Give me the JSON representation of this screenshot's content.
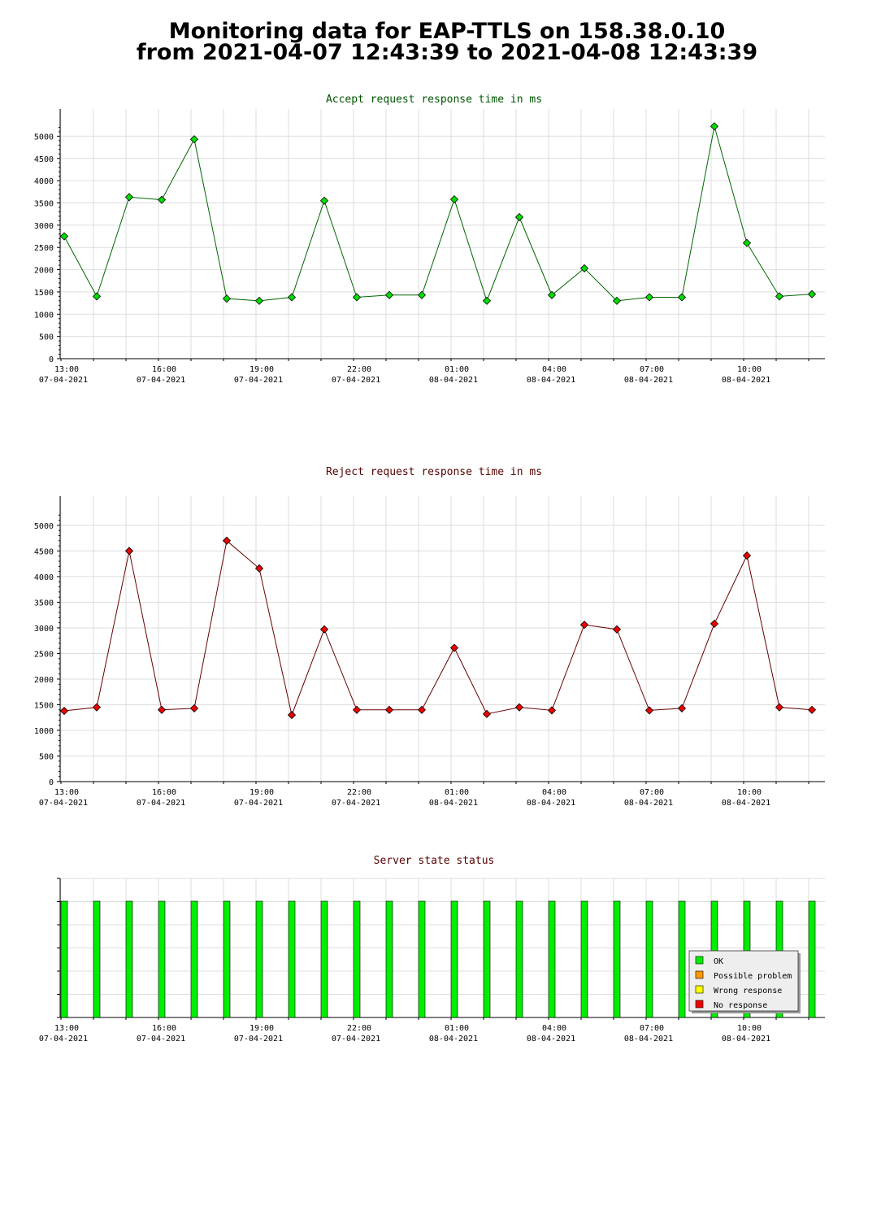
{
  "header": {
    "title_line1": "Monitoring data for EAP-TTLS on 158.38.0.10",
    "title_line2": "from 2021-04-07 12:43:39 to 2021-04-08 12:43:39"
  },
  "x_axis": {
    "ticks": [
      {
        "time": "13:00",
        "date": "07-04-2021"
      },
      {
        "time": "16:00",
        "date": "07-04-2021"
      },
      {
        "time": "19:00",
        "date": "07-04-2021"
      },
      {
        "time": "22:00",
        "date": "07-04-2021"
      },
      {
        "time": "01:00",
        "date": "08-04-2021"
      },
      {
        "time": "04:00",
        "date": "08-04-2021"
      },
      {
        "time": "07:00",
        "date": "08-04-2021"
      },
      {
        "time": "10:00",
        "date": "08-04-2021"
      }
    ]
  },
  "chart_data": [
    {
      "type": "line",
      "title": "Accept request response time in ms",
      "title_color": "#005500",
      "series": [
        {
          "color": "#00dd00",
          "line_color": "#006600",
          "x": [
            "13:00",
            "14:00",
            "15:00",
            "16:00",
            "17:00",
            "18:00",
            "19:00",
            "20:00",
            "21:00",
            "22:00",
            "23:00",
            "00:00",
            "01:00",
            "02:00",
            "03:00",
            "04:00",
            "05:00",
            "06:00",
            "07:00",
            "08:00",
            "09:00",
            "10:00",
            "11:00",
            "12:00"
          ],
          "values": [
            2750,
            1400,
            3630,
            3570,
            4930,
            1350,
            1300,
            1380,
            3550,
            1380,
            1430,
            1430,
            3580,
            1300,
            3180,
            1430,
            2030,
            1300,
            1380,
            1380,
            5220,
            2600,
            1400,
            1450
          ]
        }
      ],
      "y_ticks": [
        0,
        500,
        1000,
        1500,
        2000,
        2500,
        3000,
        3500,
        4000,
        4500,
        5000
      ],
      "ylim": [
        0,
        5300
      ],
      "grid": true
    },
    {
      "type": "line",
      "title": "Reject request response time in ms",
      "title_color": "#550000",
      "series": [
        {
          "color": "#ee0000",
          "line_color": "#660000",
          "x": [
            "13:00",
            "14:00",
            "15:00",
            "16:00",
            "17:00",
            "18:00",
            "19:00",
            "20:00",
            "21:00",
            "22:00",
            "23:00",
            "00:00",
            "01:00",
            "02:00",
            "03:00",
            "04:00",
            "05:00",
            "06:00",
            "07:00",
            "08:00",
            "09:00",
            "10:00",
            "11:00",
            "12:00"
          ],
          "values": [
            1380,
            1450,
            4500,
            1400,
            1430,
            4700,
            4160,
            1300,
            2970,
            1400,
            1400,
            1400,
            2610,
            1320,
            1450,
            1390,
            3060,
            2970,
            1390,
            1430,
            3080,
            4410,
            1450,
            1400
          ]
        }
      ],
      "y_ticks": [
        0,
        500,
        1000,
        1500,
        2000,
        2500,
        3000,
        3500,
        4000,
        4500,
        5000
      ],
      "ylim": [
        0,
        5300
      ],
      "grid": true
    },
    {
      "type": "bar",
      "title": "Server state status",
      "title_color": "#550000",
      "categories": [
        "13:00",
        "14:00",
        "15:00",
        "16:00",
        "17:00",
        "18:00",
        "19:00",
        "20:00",
        "21:00",
        "22:00",
        "23:00",
        "00:00",
        "01:00",
        "02:00",
        "03:00",
        "04:00",
        "05:00",
        "06:00",
        "07:00",
        "08:00",
        "09:00",
        "10:00",
        "11:00",
        "12:00"
      ],
      "states": [
        "OK",
        "OK",
        "OK",
        "OK",
        "OK",
        "OK",
        "OK",
        "OK",
        "OK",
        "OK",
        "OK",
        "OK",
        "OK",
        "OK",
        "OK",
        "OK",
        "OK",
        "OK",
        "OK",
        "OK",
        "OK",
        "OK",
        "OK",
        "OK"
      ],
      "legend": [
        {
          "label": "OK",
          "color": "#00ee00"
        },
        {
          "label": "Possible problem",
          "color": "#ff9900"
        },
        {
          "label": "Wrong response",
          "color": "#ffff00"
        },
        {
          "label": "No response",
          "color": "#ee0000"
        }
      ],
      "legend_placement": "bottom-right",
      "grid": true
    }
  ]
}
